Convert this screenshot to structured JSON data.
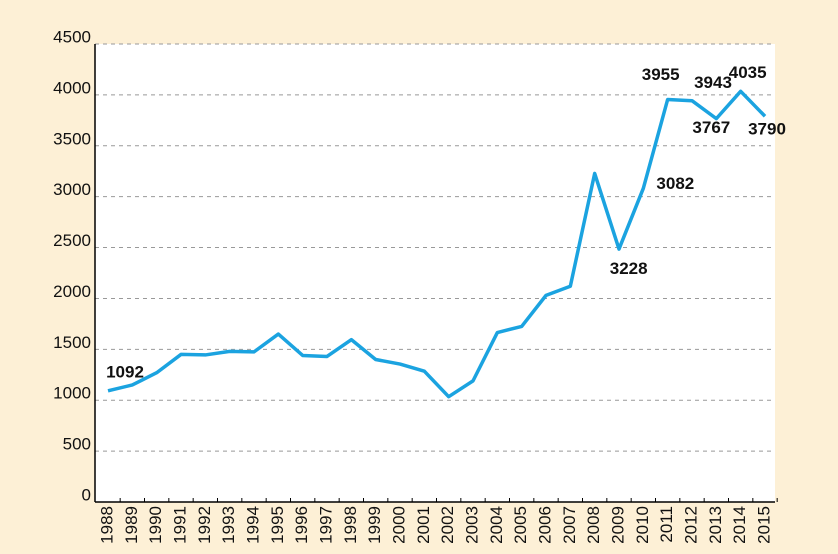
{
  "chart_data": {
    "type": "line",
    "x": [
      "1988",
      "1989",
      "1990",
      "1991",
      "1992",
      "1993",
      "1994",
      "1995",
      "1996",
      "1997",
      "1998",
      "1999",
      "2000",
      "2001",
      "2002",
      "2003",
      "2004",
      "2005",
      "2006",
      "2007",
      "2008",
      "2009",
      "2010",
      "2011",
      "2012",
      "2013",
      "2014",
      "2015"
    ],
    "series": [
      {
        "name": null,
        "color": "#1ba3e0",
        "values": [
          1092,
          1150,
          1270,
          1450,
          1445,
          1480,
          1475,
          1650,
          1440,
          1430,
          1595,
          1400,
          1355,
          1285,
          1035,
          1190,
          1665,
          1725,
          2030,
          2120,
          3228,
          2485,
          3082,
          3955,
          3943,
          3767,
          4035,
          3790
        ],
        "value_labels": [
          "1092",
          null,
          null,
          null,
          null,
          null,
          null,
          null,
          null,
          null,
          null,
          null,
          null,
          null,
          null,
          null,
          null,
          null,
          null,
          null,
          "3228",
          null,
          "3082",
          "3955",
          "3943",
          "3767",
          "4035",
          "3790"
        ]
      }
    ],
    "ylim": [
      0,
      4500
    ],
    "yticks": [
      0,
      500,
      1000,
      1500,
      2000,
      2500,
      3000,
      3500,
      4000,
      4500
    ],
    "grid": true
  }
}
